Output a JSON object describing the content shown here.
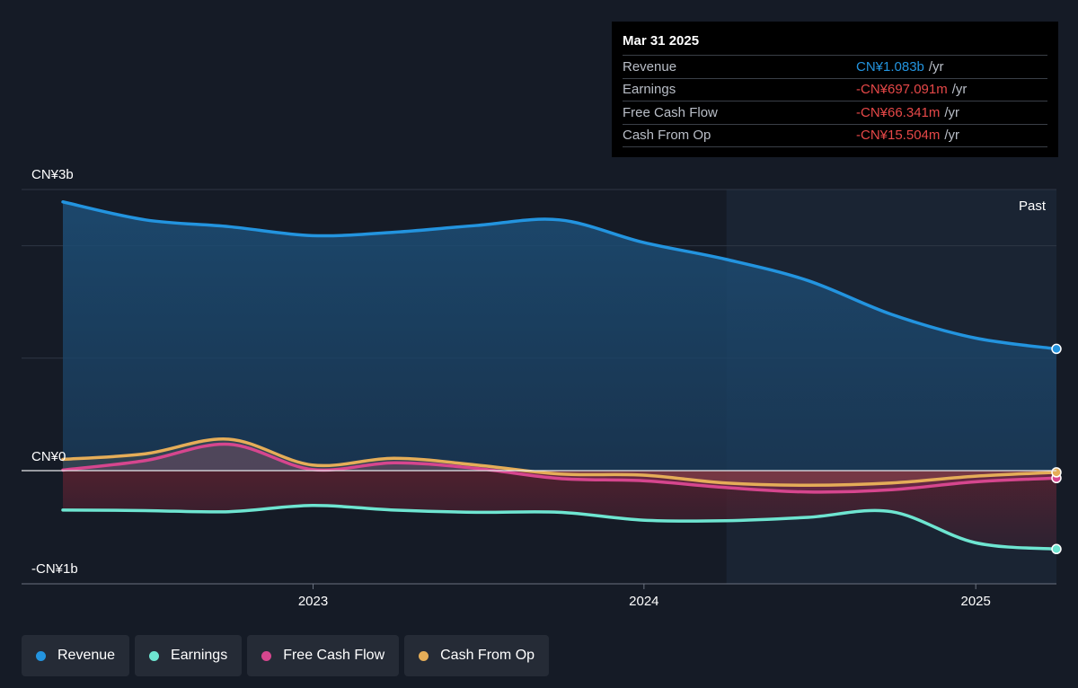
{
  "tooltip": {
    "date": "Mar 31 2025",
    "rows": [
      {
        "label": "Revenue",
        "value": "CN¥1.083b",
        "unit": "/yr",
        "color": "#2394df"
      },
      {
        "label": "Earnings",
        "value": "-CN¥697.091m",
        "unit": "/yr",
        "color": "#e64848"
      },
      {
        "label": "Free Cash Flow",
        "value": "-CN¥66.341m",
        "unit": "/yr",
        "color": "#e64848"
      },
      {
        "label": "Cash From Op",
        "value": "-CN¥15.504m",
        "unit": "/yr",
        "color": "#e64848"
      }
    ]
  },
  "legend": [
    {
      "label": "Revenue",
      "color": "#2394df"
    },
    {
      "label": "Earnings",
      "color": "#6ee5d1"
    },
    {
      "label": "Free Cash Flow",
      "color": "#d6468e"
    },
    {
      "label": "Cash From Op",
      "color": "#e5ad58"
    }
  ],
  "chart_data": {
    "type": "area",
    "y_tick_labels": [
      "CN¥3b",
      "CN¥0",
      "-CN¥1b"
    ],
    "x_tick_labels": [
      "2023",
      "2024",
      "2025"
    ],
    "past_label": "Past",
    "ylim": [
      -1000,
      2500
    ],
    "x_range": [
      "2022-03-31",
      "2025-03-31"
    ],
    "past_from": "2024-04-01",
    "series": [
      {
        "name": "Revenue",
        "color": "#2394df",
        "x": [
          "2022-03-31",
          "2022-06-30",
          "2022-09-30",
          "2022-12-31",
          "2023-03-31",
          "2023-06-30",
          "2023-09-30",
          "2023-12-31",
          "2024-03-31",
          "2024-06-30",
          "2024-09-30",
          "2024-12-31",
          "2025-03-31"
        ],
        "values": [
          2390,
          2230,
          2170,
          2090,
          2120,
          2180,
          2230,
          2030,
          1880,
          1690,
          1390,
          1180,
          1083
        ]
      },
      {
        "name": "Earnings",
        "color": "#6ee5d1",
        "x": [
          "2022-03-31",
          "2022-06-30",
          "2022-09-30",
          "2022-12-31",
          "2023-03-31",
          "2023-06-30",
          "2023-09-30",
          "2023-12-31",
          "2024-03-31",
          "2024-06-30",
          "2024-09-30",
          "2024-12-31",
          "2025-03-31"
        ],
        "values": [
          -350,
          -355,
          -365,
          -310,
          -350,
          -370,
          -370,
          -440,
          -445,
          -415,
          -365,
          -640,
          -697
        ]
      },
      {
        "name": "Free Cash Flow",
        "color": "#d6468e",
        "x": [
          "2022-03-31",
          "2022-06-30",
          "2022-09-30",
          "2022-12-31",
          "2023-03-31",
          "2023-06-30",
          "2023-09-30",
          "2023-12-31",
          "2024-03-31",
          "2024-06-30",
          "2024-09-30",
          "2024-12-31",
          "2025-03-31"
        ],
        "values": [
          5,
          90,
          235,
          10,
          70,
          20,
          -70,
          -90,
          -150,
          -190,
          -170,
          -100,
          -66
        ]
      },
      {
        "name": "Cash From Op",
        "color": "#e5ad58",
        "x": [
          "2022-03-31",
          "2022-06-30",
          "2022-09-30",
          "2022-12-31",
          "2023-03-31",
          "2023-06-30",
          "2023-09-30",
          "2023-12-31",
          "2024-03-31",
          "2024-06-30",
          "2024-09-30",
          "2024-12-31",
          "2025-03-31"
        ],
        "values": [
          100,
          150,
          280,
          50,
          110,
          50,
          -30,
          -40,
          -110,
          -130,
          -110,
          -50,
          -15
        ]
      }
    ]
  }
}
